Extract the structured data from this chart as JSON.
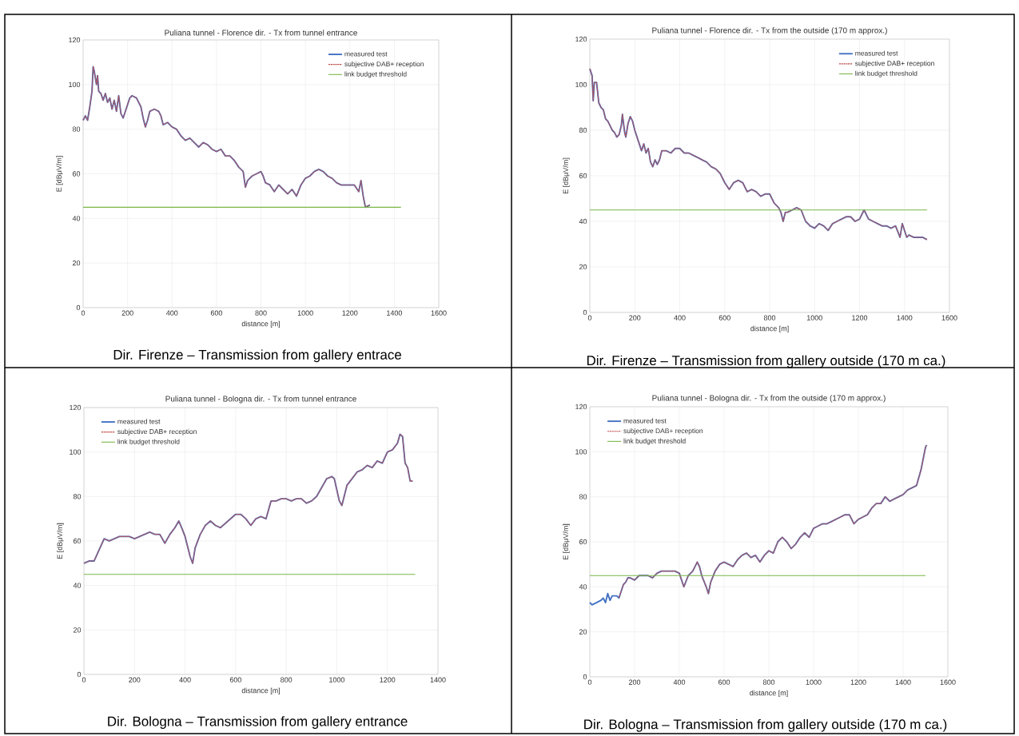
{
  "chart_data": [
    {
      "type": "line",
      "title": "Puliana tunnel -  Florence dir. - Tx from tunnel entrance",
      "xlabel": "distance [m]",
      "ylabel": "E [dBμV/m]",
      "annotations": [
        "Dir. Firenze – Transmission from gallery entrace"
      ],
      "xlim": [
        0,
        1600
      ],
      "xticks": [
        0,
        200,
        400,
        600,
        800,
        1000,
        1200,
        1400,
        1600
      ],
      "ylim": [
        0,
        120
      ],
      "yticks": [
        0,
        20,
        40,
        60,
        80,
        100,
        120
      ],
      "grid": true,
      "legend": "top right",
      "marker": "none",
      "x": [
        0,
        10,
        20,
        30,
        40,
        45,
        50,
        60,
        65,
        70,
        80,
        90,
        100,
        110,
        120,
        130,
        140,
        150,
        160,
        170,
        180,
        190,
        200,
        210,
        220,
        240,
        260,
        270,
        280,
        290,
        300,
        320,
        340,
        350,
        360,
        380,
        400,
        420,
        440,
        460,
        480,
        500,
        520,
        540,
        560,
        580,
        600,
        620,
        640,
        660,
        680,
        700,
        720,
        730,
        740,
        760,
        780,
        800,
        810,
        820,
        840,
        860,
        880,
        900,
        920,
        940,
        960,
        980,
        1000,
        1020,
        1040,
        1060,
        1080,
        1100,
        1120,
        1140,
        1160,
        1180,
        1200,
        1220,
        1240,
        1250,
        1260,
        1270,
        1290
      ],
      "series": [
        {
          "name": "measured test",
          "color": "#4472c4",
          "line_style": "solid",
          "values": [
            84,
            86,
            84,
            90,
            97,
            108,
            106,
            100,
            104,
            97,
            96,
            93,
            96,
            92,
            94,
            89,
            93,
            88,
            95,
            87,
            85,
            88,
            91,
            94,
            95,
            94,
            90,
            85,
            81,
            84,
            88,
            89,
            88,
            86,
            82,
            83,
            81,
            80,
            77,
            75,
            76,
            74,
            72,
            74,
            73,
            71,
            70,
            71,
            68,
            68,
            66,
            63,
            61,
            54,
            57,
            59,
            60,
            61,
            59,
            56,
            55,
            52,
            55,
            53,
            51,
            53,
            50,
            55,
            58,
            59,
            61,
            62,
            61,
            59,
            58,
            56,
            55,
            55,
            55,
            55,
            52,
            57,
            50,
            45,
            46
          ]
        },
        {
          "name": "subjective DAB+ reception",
          "color": "#c0504d",
          "line_style": "dotted",
          "values": [
            84,
            86,
            84,
            90,
            97,
            108,
            106,
            100,
            104,
            97,
            96,
            93,
            96,
            92,
            94,
            89,
            93,
            88,
            95,
            87,
            85,
            88,
            91,
            94,
            95,
            94,
            90,
            85,
            81,
            84,
            88,
            89,
            88,
            86,
            82,
            83,
            81,
            80,
            77,
            75,
            76,
            74,
            72,
            74,
            73,
            71,
            70,
            71,
            68,
            68,
            66,
            63,
            61,
            54,
            57,
            59,
            60,
            61,
            59,
            56,
            55,
            52,
            55,
            53,
            51,
            53,
            50,
            55,
            58,
            59,
            61,
            62,
            61,
            59,
            58,
            56,
            55,
            55,
            55,
            55,
            52,
            57,
            50,
            45,
            46
          ]
        },
        {
          "name": "link budget threshold",
          "color": "#7ab648",
          "line_style": "solid",
          "x": [
            0,
            1430
          ],
          "values": [
            45,
            45
          ]
        }
      ]
    },
    {
      "type": "line",
      "title": "Puliana tunnel - Florence dir. - Tx from the outside (170 m  approx.)",
      "xlabel": "distance [m]",
      "ylabel": "E [dBμV/m]",
      "annotations": [
        "Dir. Firenze – Transmission from gallery outside (170 m ca.)"
      ],
      "xlim": [
        0,
        1600
      ],
      "xticks": [
        0,
        200,
        400,
        600,
        800,
        1000,
        1200,
        1400,
        1600
      ],
      "ylim": [
        0,
        120
      ],
      "yticks": [
        0,
        20,
        40,
        60,
        80,
        100,
        120
      ],
      "grid": true,
      "legend": "top right",
      "marker": "none",
      "x": [
        0,
        10,
        15,
        20,
        30,
        40,
        50,
        60,
        70,
        80,
        100,
        110,
        120,
        130,
        140,
        145,
        155,
        160,
        170,
        180,
        190,
        200,
        210,
        220,
        230,
        240,
        250,
        260,
        270,
        280,
        290,
        300,
        310,
        320,
        340,
        360,
        380,
        400,
        420,
        440,
        460,
        480,
        500,
        520,
        540,
        560,
        580,
        600,
        620,
        640,
        660,
        680,
        700,
        720,
        740,
        760,
        780,
        800,
        820,
        840,
        850,
        860,
        870,
        880,
        900,
        920,
        940,
        960,
        980,
        1000,
        1020,
        1040,
        1060,
        1080,
        1100,
        1120,
        1140,
        1160,
        1180,
        1200,
        1220,
        1240,
        1260,
        1280,
        1300,
        1320,
        1340,
        1360,
        1380,
        1390,
        1410,
        1420,
        1440,
        1460,
        1480,
        1500
      ],
      "series": [
        {
          "name": "measured test",
          "color": "#4472c4",
          "line_style": "solid",
          "values": [
            107,
            104,
            93,
            101,
            101,
            92,
            90,
            89,
            85,
            84,
            80,
            79,
            77,
            78,
            82,
            87,
            79,
            77,
            83,
            86,
            84,
            80,
            77,
            74,
            71,
            74,
            70,
            72,
            66,
            64,
            67,
            65,
            67,
            71,
            71,
            70,
            72,
            72,
            70,
            70,
            69,
            68,
            67,
            66,
            64,
            63,
            61,
            57,
            54,
            57,
            58,
            57,
            53,
            54,
            53,
            51,
            52,
            52,
            48,
            46,
            44,
            40,
            44,
            44,
            45,
            46,
            45,
            40,
            38,
            37,
            39,
            38,
            36,
            39,
            40,
            41,
            42,
            42,
            40,
            41,
            45,
            41,
            40,
            39,
            38,
            38,
            37,
            38,
            33,
            39,
            33,
            34,
            33,
            33,
            33,
            32
          ]
        },
        {
          "name": "subjective DAB+ reception",
          "color": "#c0504d",
          "line_style": "dotted",
          "values": [
            107,
            104,
            93,
            101,
            101,
            92,
            90,
            89,
            85,
            84,
            80,
            79,
            77,
            78,
            82,
            87,
            79,
            77,
            83,
            86,
            84,
            80,
            77,
            74,
            71,
            74,
            70,
            72,
            66,
            64,
            67,
            65,
            67,
            71,
            71,
            70,
            72,
            72,
            70,
            70,
            69,
            68,
            67,
            66,
            64,
            63,
            61,
            57,
            54,
            57,
            58,
            57,
            53,
            54,
            53,
            51,
            52,
            52,
            48,
            46,
            44,
            40,
            44,
            44,
            45,
            46,
            45,
            40,
            38,
            37,
            39,
            38,
            36,
            39,
            40,
            41,
            42,
            42,
            40,
            41,
            45,
            41,
            40,
            39,
            38,
            38,
            37,
            38,
            33,
            39,
            33,
            34,
            33,
            33,
            33,
            32
          ]
        },
        {
          "name": "link budget threshold",
          "color": "#7ab648",
          "line_style": "solid",
          "x": [
            0,
            1500
          ],
          "values": [
            45,
            45
          ]
        }
      ]
    },
    {
      "type": "line",
      "title": "Puliana tunnel - Bologna dir. - Tx from tunnel entrance",
      "xlabel": "distance [m]",
      "ylabel": "E [dBμV/m]",
      "annotations": [
        "Dir. Bologna – Transmission from gallery entrance"
      ],
      "xlim": [
        0,
        1400
      ],
      "xticks": [
        0,
        200,
        400,
        600,
        800,
        1000,
        1200,
        1400
      ],
      "ylim": [
        0,
        120
      ],
      "yticks": [
        0,
        20,
        40,
        60,
        80,
        100,
        120
      ],
      "grid": true,
      "legend": "top left",
      "marker": "none",
      "x": [
        0,
        20,
        40,
        60,
        80,
        100,
        120,
        140,
        160,
        180,
        200,
        220,
        240,
        260,
        280,
        300,
        320,
        340,
        360,
        375,
        390,
        400,
        420,
        430,
        440,
        460,
        480,
        500,
        520,
        540,
        560,
        580,
        600,
        620,
        640,
        660,
        680,
        700,
        720,
        730,
        740,
        760,
        780,
        800,
        820,
        840,
        860,
        880,
        900,
        920,
        940,
        960,
        980,
        990,
        1000,
        1010,
        1020,
        1040,
        1060,
        1080,
        1100,
        1120,
        1140,
        1160,
        1180,
        1200,
        1220,
        1240,
        1250,
        1260,
        1270,
        1280,
        1290,
        1300
      ],
      "series": [
        {
          "name": "measured test",
          "color": "#4472c4",
          "line_style": "solid",
          "values": [
            50,
            51,
            51,
            56,
            61,
            60,
            61,
            62,
            62,
            62,
            61,
            62,
            63,
            64,
            63,
            63,
            59,
            63,
            66,
            69,
            65,
            62,
            53,
            50,
            57,
            63,
            67,
            69,
            67,
            66,
            68,
            70,
            72,
            72,
            70,
            67,
            70,
            71,
            70,
            74,
            78,
            78,
            79,
            79,
            78,
            79,
            79,
            77,
            78,
            80,
            84,
            88,
            89,
            88,
            83,
            78,
            76,
            85,
            88,
            91,
            92,
            94,
            93,
            96,
            95,
            100,
            101,
            104,
            108,
            107,
            95,
            93,
            87,
            87
          ]
        },
        {
          "name": "subjective DAB+ reception",
          "color": "#c0504d",
          "line_style": "dotted",
          "values": [
            50,
            51,
            51,
            56,
            61,
            60,
            61,
            62,
            62,
            62,
            61,
            62,
            63,
            64,
            63,
            63,
            59,
            63,
            66,
            69,
            65,
            62,
            53,
            50,
            57,
            63,
            67,
            69,
            67,
            66,
            68,
            70,
            72,
            72,
            70,
            67,
            70,
            71,
            70,
            74,
            78,
            78,
            79,
            79,
            78,
            79,
            79,
            77,
            78,
            80,
            84,
            88,
            89,
            88,
            83,
            78,
            76,
            85,
            88,
            91,
            92,
            94,
            93,
            96,
            95,
            100,
            101,
            104,
            108,
            107,
            95,
            93,
            87,
            87
          ]
        },
        {
          "name": "link budget threshold",
          "color": "#7ab648",
          "line_style": "solid",
          "x": [
            0,
            1310
          ],
          "values": [
            45,
            45
          ]
        }
      ]
    },
    {
      "type": "line",
      "title": "Puliana tunnel - Bologna dir. - Tx from the outside (170 m approx.)",
      "xlabel": "distance [m]",
      "ylabel": "E [dBμV/m]",
      "annotations": [
        "Dir. Bologna – Transmission from gallery outside (170 m ca.)"
      ],
      "xlim": [
        0,
        1600
      ],
      "xticks": [
        0,
        200,
        400,
        600,
        800,
        1000,
        1200,
        1400,
        1600
      ],
      "ylim": [
        0,
        120
      ],
      "yticks": [
        0,
        20,
        40,
        60,
        80,
        100,
        120
      ],
      "grid": true,
      "legend": "top left",
      "marker": "none",
      "x": [
        0,
        10,
        30,
        50,
        60,
        70,
        80,
        90,
        100,
        120,
        130,
        140,
        150,
        160,
        170,
        180,
        200,
        220,
        240,
        260,
        280,
        300,
        320,
        340,
        360,
        380,
        400,
        410,
        420,
        440,
        460,
        480,
        490,
        500,
        520,
        530,
        540,
        560,
        580,
        600,
        620,
        640,
        660,
        680,
        700,
        720,
        740,
        760,
        780,
        800,
        820,
        840,
        860,
        880,
        900,
        920,
        940,
        960,
        980,
        1000,
        1020,
        1040,
        1060,
        1080,
        1100,
        1120,
        1140,
        1160,
        1180,
        1200,
        1220,
        1240,
        1260,
        1280,
        1300,
        1320,
        1340,
        1360,
        1380,
        1400,
        1420,
        1440,
        1460,
        1480,
        1490,
        1500,
        1505
      ],
      "series": [
        {
          "name": "measured test",
          "color": "#4472c4",
          "line_style": "solid",
          "values": [
            33,
            32,
            33,
            34,
            35,
            33,
            37,
            34,
            36,
            36,
            35,
            38,
            41,
            42,
            44,
            44,
            43,
            45,
            45,
            45,
            44,
            46,
            47,
            47,
            47,
            47,
            46,
            43,
            40,
            45,
            47,
            51,
            49,
            45,
            40,
            37,
            42,
            47,
            50,
            51,
            50,
            49,
            52,
            54,
            55,
            53,
            54,
            51,
            54,
            56,
            55,
            60,
            62,
            60,
            57,
            59,
            62,
            64,
            62,
            66,
            67,
            68,
            68,
            69,
            70,
            71,
            72,
            72,
            68,
            70,
            71,
            72,
            75,
            77,
            77,
            80,
            78,
            79,
            80,
            81,
            83,
            84,
            85,
            92,
            97,
            102,
            103
          ]
        },
        {
          "name": "subjective DAB+ reception",
          "color": "#c0504d",
          "line_style": "dotted",
          "x": [
            130,
            140,
            150,
            160,
            170,
            180,
            200,
            220,
            240,
            260,
            280,
            300,
            320,
            340,
            360,
            380,
            400,
            410,
            420,
            440,
            460,
            480,
            490,
            500,
            520,
            530,
            540,
            560,
            580,
            600,
            620,
            640,
            660,
            680,
            700,
            720,
            740,
            760,
            780,
            800,
            820,
            840,
            860,
            880,
            900,
            920,
            940,
            960,
            980,
            1000,
            1020,
            1040,
            1060,
            1080,
            1100,
            1120,
            1140,
            1160,
            1180,
            1200,
            1220,
            1240,
            1260,
            1280,
            1300,
            1320,
            1340,
            1360,
            1380,
            1400,
            1420,
            1440,
            1460,
            1480,
            1490,
            1500,
            1505
          ],
          "values": [
            35,
            38,
            41,
            42,
            44,
            44,
            43,
            45,
            45,
            45,
            44,
            46,
            47,
            47,
            47,
            47,
            46,
            43,
            40,
            45,
            47,
            51,
            49,
            45,
            40,
            37,
            42,
            47,
            50,
            51,
            50,
            49,
            52,
            54,
            55,
            53,
            54,
            51,
            54,
            56,
            55,
            60,
            62,
            60,
            57,
            59,
            62,
            64,
            62,
            66,
            67,
            68,
            68,
            69,
            70,
            71,
            72,
            72,
            68,
            70,
            71,
            72,
            75,
            77,
            77,
            80,
            78,
            79,
            80,
            81,
            83,
            84,
            85,
            92,
            97,
            102,
            103
          ]
        },
        {
          "name": "link budget threshold",
          "color": "#7ab648",
          "line_style": "solid",
          "x": [
            0,
            1500
          ],
          "values": [
            45,
            45
          ]
        }
      ]
    }
  ]
}
